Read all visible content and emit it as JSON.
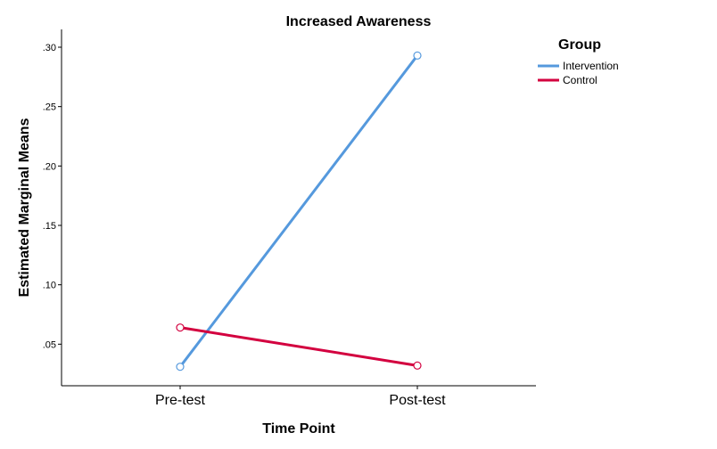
{
  "chart_data": {
    "type": "line",
    "title": "Increased Awareness",
    "xlabel": "Time Point",
    "ylabel": "Estimated Marginal Means",
    "categories": [
      "Pre-test",
      "Post-test"
    ],
    "ylim": [
      0.015,
      0.315
    ],
    "yticks": [
      0.05,
      0.1,
      0.15,
      0.2,
      0.25,
      0.3
    ],
    "ytick_labels": [
      ".05",
      ".10",
      ".15",
      ".20",
      ".25",
      ".30"
    ],
    "grid": false,
    "legend": {
      "title": "Group",
      "placement": "top-right"
    },
    "series": [
      {
        "name": "Intervention",
        "values": [
          0.031,
          0.293
        ],
        "color": "#5599dd"
      },
      {
        "name": "Control",
        "values": [
          0.064,
          0.032
        ],
        "color": "#d3003f"
      }
    ]
  }
}
